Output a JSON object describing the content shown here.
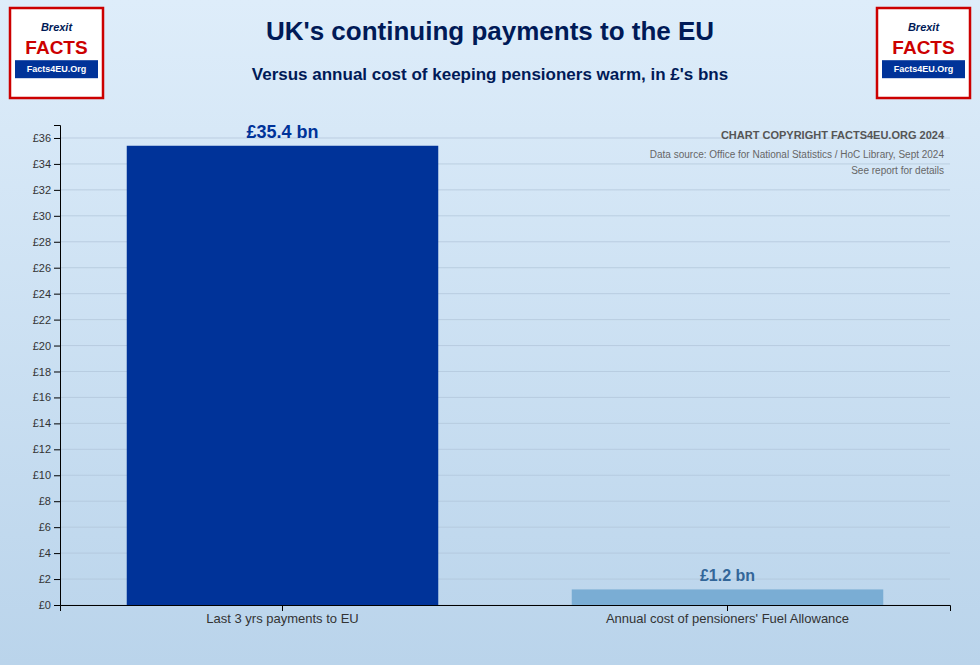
{
  "chart_data": {
    "type": "bar",
    "title": "UK's continuing payments to the EU",
    "subtitle": "Versus annual cost of keeping pensioners warm, in £'s bns",
    "categories": [
      "Last 3 yrs payments to EU",
      "Annual cost of pensioners' Fuel Allowance"
    ],
    "values": [
      35.4,
      1.2
    ],
    "value_labels": [
      "£35.4 bn",
      "£1.2 bn"
    ],
    "data_labels": true,
    "colors": [
      "#003399",
      "#7aadd4"
    ],
    "ylim": [
      0,
      37
    ],
    "yticks": [
      {
        "value": 0,
        "label": "£0"
      },
      {
        "value": 2,
        "label": "£2"
      },
      {
        "value": 4,
        "label": "£4"
      },
      {
        "value": 6,
        "label": "£6"
      },
      {
        "value": 8,
        "label": "£8"
      },
      {
        "value": 10,
        "label": "£10"
      },
      {
        "value": 12,
        "label": "£12"
      },
      {
        "value": 14,
        "label": "£14"
      },
      {
        "value": 16,
        "label": "£16"
      },
      {
        "value": 18,
        "label": "£18"
      },
      {
        "value": 20,
        "label": "£20"
      },
      {
        "value": 22,
        "label": "£22"
      },
      {
        "value": 24,
        "label": "£24"
      },
      {
        "value": 26,
        "label": "£26"
      },
      {
        "value": 28,
        "label": "£28"
      },
      {
        "value": 30,
        "label": "£30"
      },
      {
        "value": 32,
        "label": "£32"
      },
      {
        "value": 34,
        "label": "£34"
      },
      {
        "value": 36,
        "label": "£36"
      }
    ],
    "grid": true,
    "annotations": [
      "Brexit",
      "FACTS",
      "Facts4EU.Org",
      "CHART COPYRIGHT FACTS4EU.ORG 2024",
      "Data source: Office for National Statistics / HoC Library, Sept 2024",
      "See report for details"
    ]
  }
}
